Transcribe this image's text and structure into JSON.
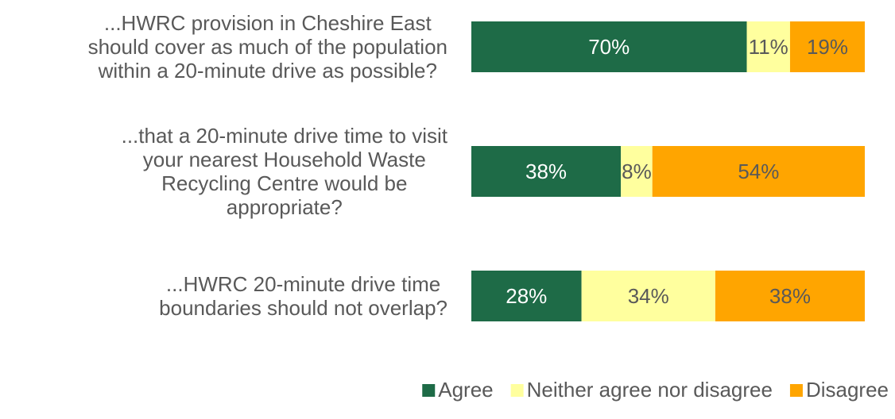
{
  "chart_data": {
    "type": "bar",
    "orientation": "horizontal",
    "stacked": "100%",
    "categories": [
      "...HWRC provision in Cheshire East should cover as much of the population within a 20-minute drive as possible?",
      "...that a 20-minute drive time to visit your nearest Household Waste Recycling Centre would be appropriate?",
      "...HWRC 20-minute drive time boundaries should not overlap?"
    ],
    "category_lines": [
      [
        "...HWRC provision in Cheshire East",
        "should cover as much of the population",
        "within a 20-minute drive as possible?"
      ],
      [
        "...that a 20-minute drive time to visit",
        "your nearest Household Waste",
        "Recycling Centre would be",
        "appropriate?"
      ],
      [
        "...HWRC 20-minute drive time",
        "boundaries should not overlap?"
      ]
    ],
    "series": [
      {
        "name": "Agree",
        "values": [
          70,
          38,
          28
        ],
        "labels": [
          "70%",
          "38%",
          "28%"
        ],
        "color": "#1e6b47",
        "label_color": "#ffffff"
      },
      {
        "name": "Neither agree nor disagree",
        "values": [
          11,
          8,
          34
        ],
        "labels": [
          "11%",
          "8%",
          "34%"
        ],
        "color": "#ffff9e",
        "label_color": "#595959"
      },
      {
        "name": "Disagree",
        "values": [
          19,
          54,
          38
        ],
        "labels": [
          "19%",
          "54%",
          "38%"
        ],
        "color": "#ffa500",
        "label_color": "#595959"
      }
    ],
    "xlim": [
      0,
      100
    ],
    "grid": false,
    "legend": "bottom-right"
  }
}
